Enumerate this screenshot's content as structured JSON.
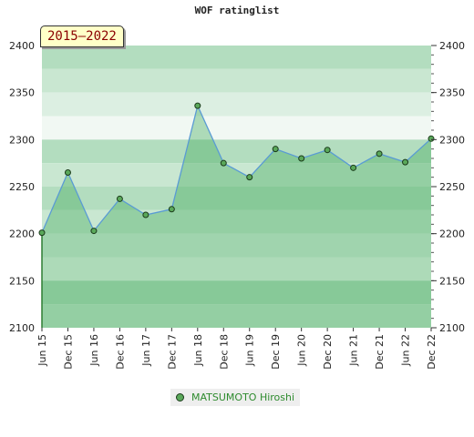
{
  "title": "WOF ratinglist",
  "period_badge": "2015–2022",
  "chart_data": {
    "type": "area",
    "x": [
      "Jun 15",
      "Dec 15",
      "Jun 16",
      "Dec 16",
      "Jun 17",
      "Dec 17",
      "Jun 18",
      "Dec 18",
      "Jun 19",
      "Dec 19",
      "Jun 20",
      "Dec 20",
      "Jun 21",
      "Dec 21",
      "Jun 22",
      "Dec 22"
    ],
    "series": [
      {
        "name": "MATSUMOTO Hiroshi",
        "values": [
          2201,
          2265,
          2203,
          2237,
          2220,
          2226,
          2336,
          2275,
          2260,
          2290,
          2280,
          2289,
          2270,
          2285,
          2276,
          2301
        ]
      }
    ],
    "ylim": [
      2100,
      2400
    ],
    "yticks": [
      2100,
      2150,
      2200,
      2250,
      2300,
      2350,
      2400
    ],
    "ytick_labels": [
      "2100",
      "2150",
      "2200",
      "2250",
      "2300",
      "2350",
      "2400"
    ],
    "grid": true,
    "legend_position": "bottom",
    "colors": {
      "line": "#5a9bd4",
      "marker": "#5aa85a",
      "marker_edge": "#1a3a1a",
      "fill": "#3ea85a"
    }
  }
}
